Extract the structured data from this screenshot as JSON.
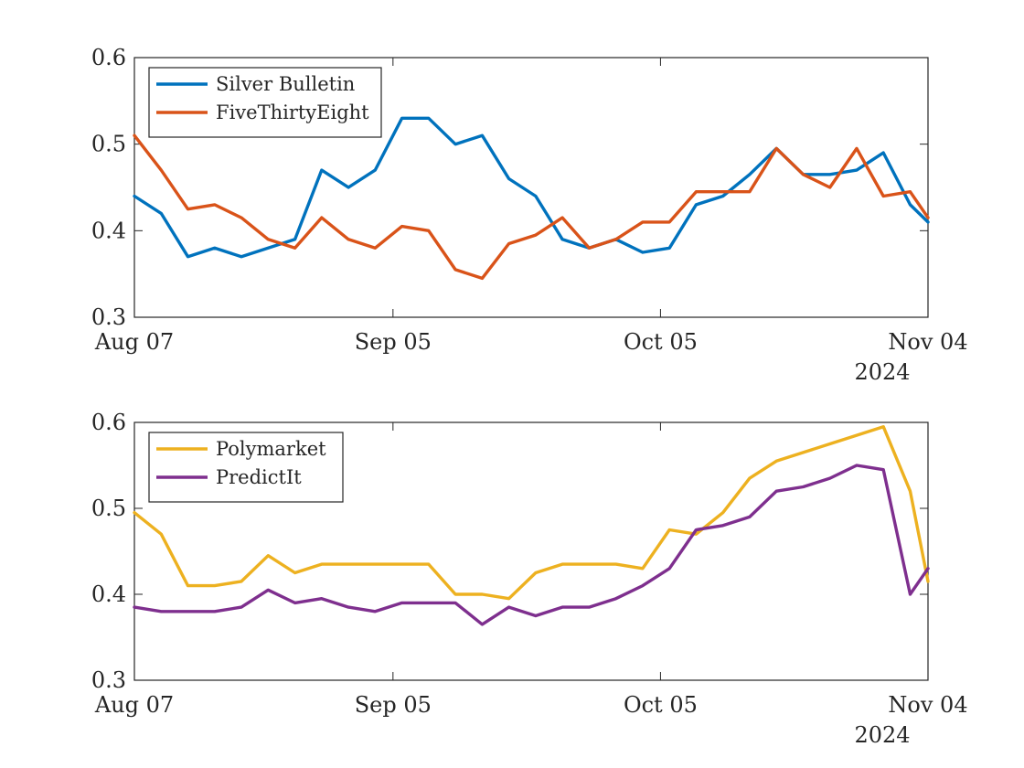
{
  "chart_data": [
    {
      "type": "line",
      "x_axis": {
        "type": "date",
        "range": [
          "2024-08-07",
          "2024-11-04"
        ],
        "tick_labels": [
          "Aug 07",
          "Sep 05",
          "Oct 05",
          "Nov 04"
        ],
        "tick_dates": [
          "2024-08-07",
          "2024-09-05",
          "2024-10-05",
          "2024-11-04"
        ],
        "year_label": "2024"
      },
      "y_axis": {
        "range": [
          0.3,
          0.6
        ],
        "tick_values": [
          0.3,
          0.4,
          0.5,
          0.6
        ],
        "tick_labels": [
          "0.3",
          "0.4",
          "0.5",
          "0.6"
        ]
      },
      "grid": false,
      "legend_position": "top-left",
      "series": [
        {
          "name": "Silver Bulletin",
          "color": "#0072BD",
          "x": [
            "2024-08-07",
            "2024-08-10",
            "2024-08-13",
            "2024-08-16",
            "2024-08-19",
            "2024-08-22",
            "2024-08-25",
            "2024-08-28",
            "2024-08-31",
            "2024-09-03",
            "2024-09-06",
            "2024-09-09",
            "2024-09-12",
            "2024-09-15",
            "2024-09-18",
            "2024-09-21",
            "2024-09-24",
            "2024-09-27",
            "2024-09-30",
            "2024-10-03",
            "2024-10-06",
            "2024-10-09",
            "2024-10-12",
            "2024-10-15",
            "2024-10-18",
            "2024-10-21",
            "2024-10-24",
            "2024-10-27",
            "2024-10-30",
            "2024-11-02",
            "2024-11-04"
          ],
          "values": [
            0.44,
            0.42,
            0.37,
            0.38,
            0.37,
            0.38,
            0.39,
            0.47,
            0.45,
            0.47,
            0.53,
            0.53,
            0.5,
            0.51,
            0.46,
            0.44,
            0.39,
            0.38,
            0.39,
            0.375,
            0.38,
            0.43,
            0.44,
            0.465,
            0.495,
            0.465,
            0.465,
            0.47,
            0.49,
            0.43,
            0.41
          ]
        },
        {
          "name": "FiveThirtyEight",
          "color": "#D95319",
          "x": [
            "2024-08-07",
            "2024-08-10",
            "2024-08-13",
            "2024-08-16",
            "2024-08-19",
            "2024-08-22",
            "2024-08-25",
            "2024-08-28",
            "2024-08-31",
            "2024-09-03",
            "2024-09-06",
            "2024-09-09",
            "2024-09-12",
            "2024-09-15",
            "2024-09-18",
            "2024-09-21",
            "2024-09-24",
            "2024-09-27",
            "2024-09-30",
            "2024-10-03",
            "2024-10-06",
            "2024-10-09",
            "2024-10-12",
            "2024-10-15",
            "2024-10-18",
            "2024-10-21",
            "2024-10-24",
            "2024-10-27",
            "2024-10-30",
            "2024-11-02",
            "2024-11-04"
          ],
          "values": [
            0.51,
            0.47,
            0.425,
            0.43,
            0.415,
            0.39,
            0.38,
            0.415,
            0.39,
            0.38,
            0.405,
            0.4,
            0.355,
            0.345,
            0.385,
            0.395,
            0.415,
            0.38,
            0.39,
            0.41,
            0.41,
            0.445,
            0.445,
            0.445,
            0.495,
            0.465,
            0.45,
            0.495,
            0.44,
            0.445,
            0.415
          ]
        }
      ]
    },
    {
      "type": "line",
      "x_axis": {
        "type": "date",
        "range": [
          "2024-08-07",
          "2024-11-04"
        ],
        "tick_labels": [
          "Aug 07",
          "Sep 05",
          "Oct 05",
          "Nov 04"
        ],
        "tick_dates": [
          "2024-08-07",
          "2024-09-05",
          "2024-10-05",
          "2024-11-04"
        ],
        "year_label": "2024"
      },
      "y_axis": {
        "range": [
          0.3,
          0.6
        ],
        "tick_values": [
          0.3,
          0.4,
          0.5,
          0.6
        ],
        "tick_labels": [
          "0.3",
          "0.4",
          "0.5",
          "0.6"
        ]
      },
      "grid": false,
      "legend_position": "top-left",
      "series": [
        {
          "name": "Polymarket",
          "color": "#EDB120",
          "x": [
            "2024-08-07",
            "2024-08-10",
            "2024-08-13",
            "2024-08-16",
            "2024-08-19",
            "2024-08-22",
            "2024-08-25",
            "2024-08-28",
            "2024-08-31",
            "2024-09-03",
            "2024-09-06",
            "2024-09-09",
            "2024-09-12",
            "2024-09-15",
            "2024-09-18",
            "2024-09-21",
            "2024-09-24",
            "2024-09-27",
            "2024-09-30",
            "2024-10-03",
            "2024-10-06",
            "2024-10-09",
            "2024-10-12",
            "2024-10-15",
            "2024-10-18",
            "2024-10-21",
            "2024-10-24",
            "2024-10-27",
            "2024-10-30",
            "2024-11-02",
            "2024-11-04"
          ],
          "values": [
            0.495,
            0.47,
            0.41,
            0.41,
            0.415,
            0.445,
            0.425,
            0.435,
            0.435,
            0.435,
            0.435,
            0.435,
            0.4,
            0.4,
            0.395,
            0.425,
            0.435,
            0.435,
            0.435,
            0.43,
            0.475,
            0.47,
            0.495,
            0.535,
            0.555,
            0.565,
            0.575,
            0.585,
            0.595,
            0.52,
            0.415
          ]
        },
        {
          "name": "PredictIt",
          "color": "#7E2F8E",
          "x": [
            "2024-08-07",
            "2024-08-10",
            "2024-08-13",
            "2024-08-16",
            "2024-08-19",
            "2024-08-22",
            "2024-08-25",
            "2024-08-28",
            "2024-08-31",
            "2024-09-03",
            "2024-09-06",
            "2024-09-09",
            "2024-09-12",
            "2024-09-15",
            "2024-09-18",
            "2024-09-21",
            "2024-09-24",
            "2024-09-27",
            "2024-09-30",
            "2024-10-03",
            "2024-10-06",
            "2024-10-09",
            "2024-10-12",
            "2024-10-15",
            "2024-10-18",
            "2024-10-21",
            "2024-10-24",
            "2024-10-27",
            "2024-10-30",
            "2024-11-02",
            "2024-11-04"
          ],
          "values": [
            0.385,
            0.38,
            0.38,
            0.38,
            0.385,
            0.405,
            0.39,
            0.395,
            0.385,
            0.38,
            0.39,
            0.39,
            0.39,
            0.365,
            0.385,
            0.375,
            0.385,
            0.385,
            0.395,
            0.41,
            0.43,
            0.475,
            0.48,
            0.49,
            0.52,
            0.525,
            0.535,
            0.55,
            0.545,
            0.4,
            0.43
          ]
        }
      ]
    }
  ]
}
